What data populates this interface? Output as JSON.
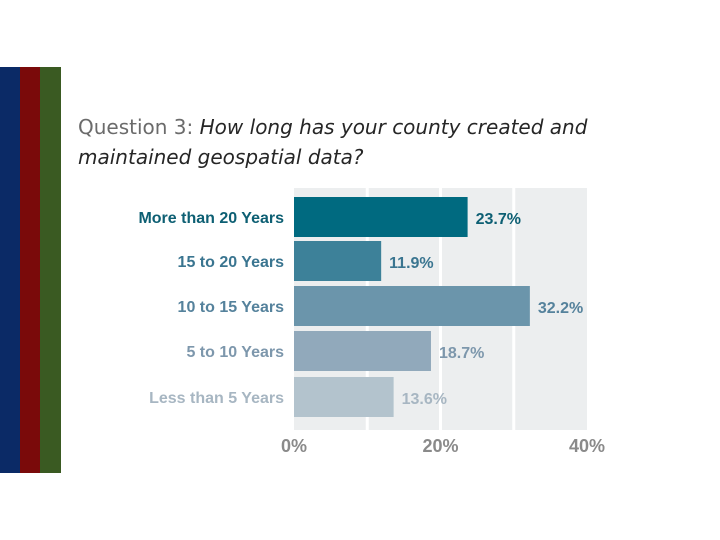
{
  "slide": {
    "title_prefix": "Question 3: ",
    "title_question": "How long has your county created and maintained geospatial data?",
    "stripe_colors": [
      "#0b2a66",
      "#7a0a0a",
      "#3a5a22"
    ]
  },
  "chart_data": {
    "type": "bar",
    "orientation": "horizontal",
    "categories": [
      "More than 20 Years",
      "15 to 20 Years",
      "10 to 15 Years",
      "5 to 10 Years",
      "Less than 5 Years"
    ],
    "values": [
      23.7,
      11.9,
      32.2,
      18.7,
      13.6
    ],
    "value_labels": [
      "23.7%",
      "11.9%",
      "32.2%",
      "18.7%",
      "13.6%"
    ],
    "bar_colors": [
      "#006a80",
      "#3d8199",
      "#6b95ab",
      "#91a9bb",
      "#b3c3cd"
    ],
    "label_colors": [
      "#0d5f73",
      "#3a7590",
      "#55829c",
      "#7d97ac",
      "#a7b6c2"
    ],
    "xlim": [
      0,
      40
    ],
    "ticks": [
      0,
      20,
      40
    ],
    "tick_labels": [
      "0%",
      "20%",
      "40%"
    ],
    "grid": true,
    "background": "#eceeef",
    "title": "",
    "xlabel": "",
    "ylabel": ""
  }
}
